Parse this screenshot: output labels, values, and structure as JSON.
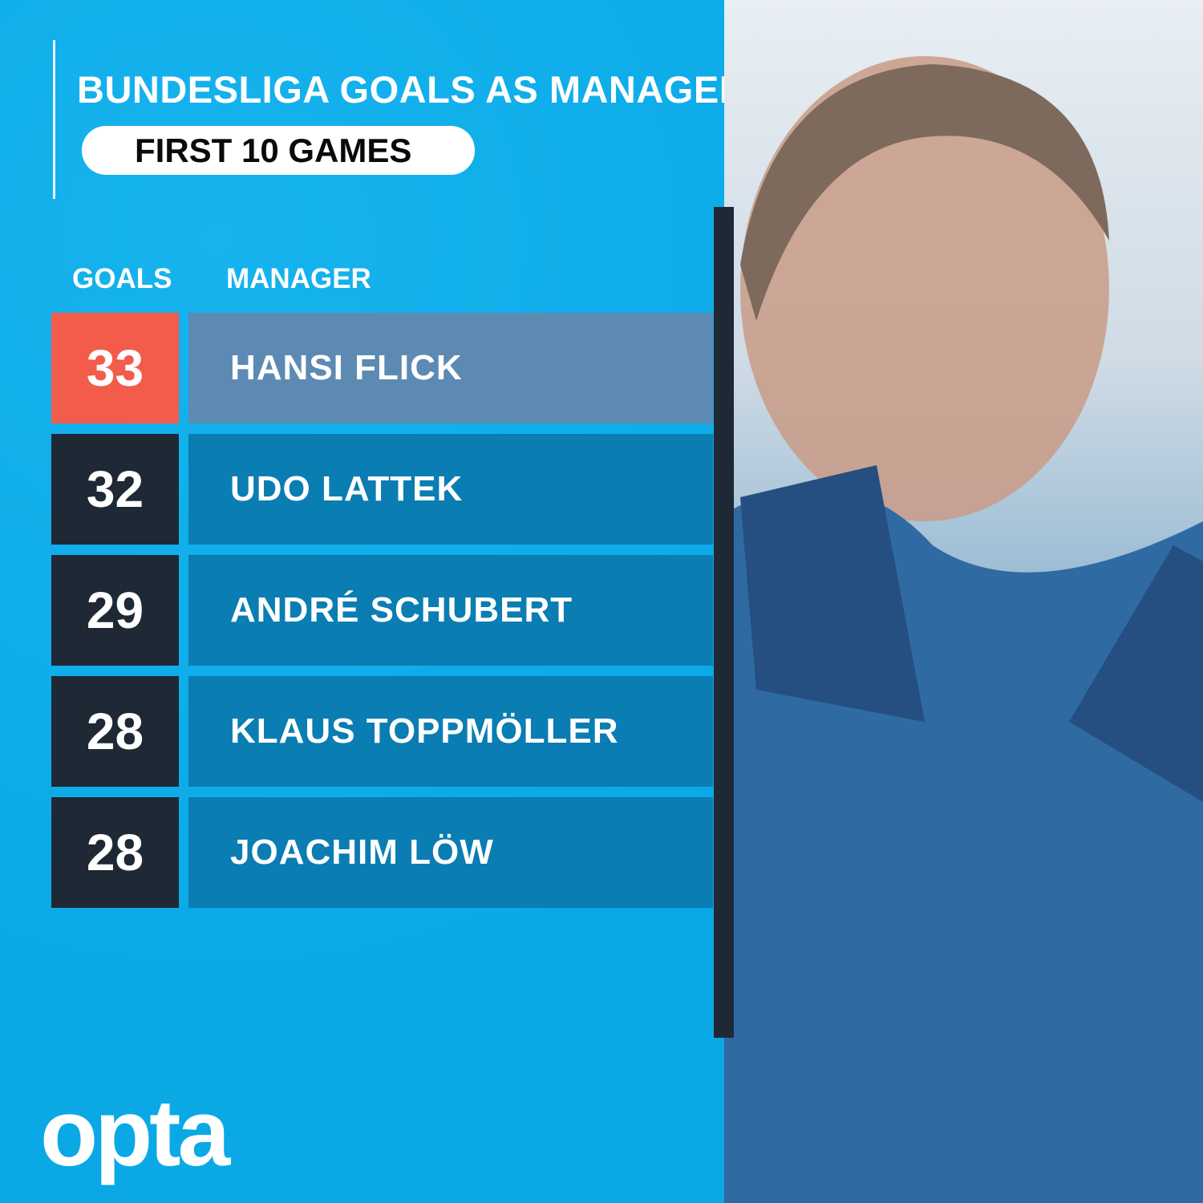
{
  "title": "BUNDESLIGA GOALS AS MANAGER",
  "subtitle": "FIRST 10 GAMES",
  "brand": "opta",
  "colors": {
    "background": "#0aaeea",
    "highlight_goal": "#f35b4b",
    "highlight_name": "#5c8ab2",
    "goal_box": "#1e2935",
    "name_box": "#0a7db3"
  },
  "chart_data": {
    "type": "table",
    "title": "BUNDESLIGA GOALS AS MANAGER",
    "subtitle": "FIRST 10 GAMES",
    "columns": [
      "GOALS",
      "MANAGER"
    ],
    "rows": [
      {
        "goals": "33",
        "manager": "HANSI FLICK",
        "highlighted": true
      },
      {
        "goals": "32",
        "manager": "UDO LATTEK"
      },
      {
        "goals": "29",
        "manager": "ANDRÉ SCHUBERT"
      },
      {
        "goals": "28",
        "manager": "KLAUS TOPPMÖLLER"
      },
      {
        "goals": "28",
        "manager": "JOACHIM LÖW"
      }
    ]
  }
}
